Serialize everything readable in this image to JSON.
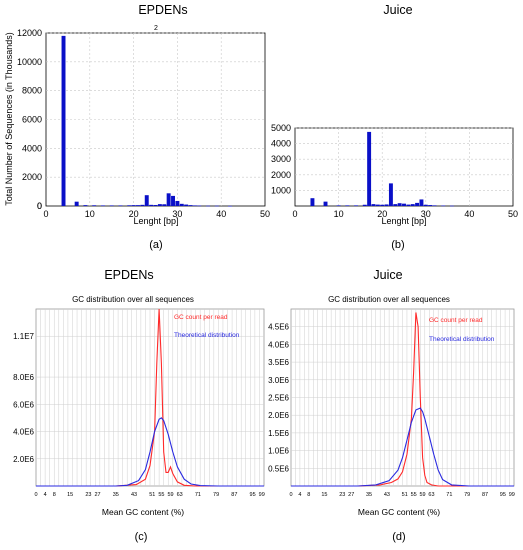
{
  "chart_data": [
    {
      "id": "a",
      "type": "bar",
      "title": "EPDENs",
      "annotation": "2",
      "panel_label": "(a)",
      "xlabel": "Lenght [bp]",
      "ylabel": "Total Number of Sequences (in Thousands)",
      "xlim": [
        0,
        50
      ],
      "ylim": [
        0,
        12000
      ],
      "xticks": [
        0,
        10,
        20,
        30,
        40,
        50
      ],
      "yticks": [
        2000,
        4000,
        6000,
        8000,
        10000,
        12000
      ],
      "grid": true,
      "bar_width": 1,
      "x": [
        4,
        7,
        9,
        11,
        13,
        15,
        17,
        19,
        20,
        21,
        22,
        23,
        24,
        25,
        26,
        27,
        28,
        29,
        30,
        31,
        32,
        33,
        34,
        35,
        37,
        39,
        42
      ],
      "values": [
        11800,
        300,
        60,
        50,
        40,
        40,
        40,
        50,
        60,
        60,
        80,
        750,
        80,
        70,
        130,
        120,
        880,
        700,
        350,
        150,
        100,
        60,
        40,
        30,
        20,
        20,
        10
      ]
    },
    {
      "id": "b",
      "type": "bar",
      "title": "Juice",
      "panel_label": "(b)",
      "xlabel": "Lenght [bp]",
      "ylabel": "",
      "xlim": [
        0,
        50
      ],
      "ylim": [
        0,
        5000
      ],
      "xticks": [
        0,
        10,
        20,
        30,
        40,
        50
      ],
      "yticks": [
        1000,
        2000,
        3000,
        4000,
        5000
      ],
      "grid": true,
      "bar_width": 1,
      "x": [
        4,
        7,
        10,
        12,
        14,
        16,
        17,
        18,
        19,
        20,
        21,
        22,
        23,
        24,
        25,
        26,
        27,
        28,
        29,
        30,
        31,
        32,
        34,
        36
      ],
      "values": [
        500,
        280,
        40,
        40,
        40,
        80,
        4750,
        120,
        90,
        80,
        100,
        1450,
        120,
        180,
        150,
        90,
        120,
        200,
        420,
        80,
        60,
        40,
        30,
        20
      ]
    },
    {
      "id": "c",
      "type": "line",
      "title": "EPDENs",
      "subtitle": "GC distribution over all sequences",
      "panel_label": "(c)",
      "xlabel": "Mean GC content (%)",
      "ylabel": "",
      "xlim": [
        0,
        100
      ],
      "ylim": [
        0,
        13000000
      ],
      "xticks": [
        0,
        4,
        8,
        15,
        23,
        27,
        35,
        43,
        51,
        55,
        59,
        63,
        71,
        79,
        87,
        95,
        99
      ],
      "yticks": [
        2000000,
        4000000,
        6000000,
        8000000,
        11000000
      ],
      "ytick_labels": [
        "2.0E6",
        "4.0E6",
        "6.0E6",
        "8.0E6",
        "1.1E7"
      ],
      "grid": true,
      "legend_location": "top-right",
      "series": [
        {
          "name": "GC count per read",
          "color": "#ff2a2a",
          "x": [
            0,
            35,
            44,
            48,
            50,
            52,
            53,
            54,
            55,
            56,
            57,
            58,
            59,
            60,
            62,
            65,
            70,
            100
          ],
          "y": [
            0,
            0,
            100000,
            500000,
            1500000,
            4000000,
            9000000,
            13000000,
            9000000,
            2500000,
            1000000,
            1000000,
            1400000,
            900000,
            300000,
            50000,
            0,
            0
          ]
        },
        {
          "name": "Theoretical distribution",
          "color": "#2a2ae0",
          "x": [
            0,
            35,
            40,
            45,
            48,
            50,
            52,
            54,
            55,
            56,
            58,
            60,
            62,
            65,
            68,
            72,
            80,
            100
          ],
          "y": [
            0,
            0,
            50000,
            400000,
            1200000,
            2500000,
            4000000,
            4900000,
            5000000,
            4800000,
            3800000,
            2500000,
            1400000,
            500000,
            150000,
            30000,
            0,
            0
          ]
        }
      ]
    },
    {
      "id": "d",
      "type": "line",
      "title": "Juice",
      "subtitle": "GC distribution over all sequences",
      "panel_label": "(d)",
      "xlabel": "Mean GC content (%)",
      "ylabel": "",
      "xlim": [
        0,
        100
      ],
      "ylim": [
        0,
        5000000
      ],
      "xticks": [
        0,
        4,
        8,
        15,
        23,
        27,
        35,
        43,
        51,
        55,
        59,
        63,
        71,
        79,
        87,
        95,
        99
      ],
      "yticks": [
        500000,
        1000000,
        1500000,
        2000000,
        2500000,
        3000000,
        3500000,
        4000000,
        4500000
      ],
      "ytick_labels": [
        "0.5E6",
        "1.0E6",
        "1.5E6",
        "2.0E6",
        "2.5E6",
        "3.0E6",
        "3.5E6",
        "4.0E6",
        "4.5E6"
      ],
      "grid": true,
      "legend_location": "top-right",
      "series": [
        {
          "name": "GC count per read",
          "color": "#ff2a2a",
          "x": [
            0,
            30,
            40,
            45,
            48,
            50,
            52,
            54,
            55,
            56,
            57,
            58,
            59,
            60,
            61,
            63,
            66,
            70,
            100
          ],
          "y": [
            0,
            0,
            30000,
            100000,
            200000,
            400000,
            900000,
            1900000,
            3200000,
            4900000,
            4500000,
            2500000,
            800000,
            300000,
            100000,
            30000,
            0,
            0,
            0
          ]
        },
        {
          "name": "Theoretical distribution",
          "color": "#2a2ae0",
          "x": [
            0,
            30,
            38,
            44,
            48,
            50,
            52,
            54,
            56,
            58,
            59,
            60,
            62,
            64,
            66,
            68,
            72,
            80,
            100
          ],
          "y": [
            0,
            0,
            30000,
            150000,
            450000,
            800000,
            1300000,
            1800000,
            2150000,
            2200000,
            2100000,
            1900000,
            1400000,
            900000,
            450000,
            180000,
            30000,
            0,
            0
          ]
        }
      ]
    }
  ]
}
